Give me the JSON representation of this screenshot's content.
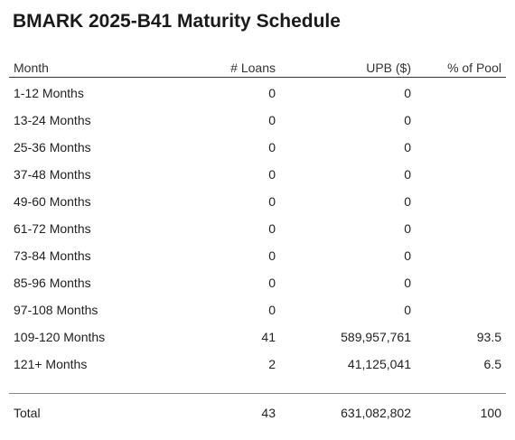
{
  "title": "BMARK 2025-B41 Maturity Schedule",
  "columns": {
    "month": "Month",
    "loans": "# Loans",
    "upb": "UPB ($)",
    "pool": "% of Pool"
  },
  "rows": [
    {
      "month": "1-12 Months",
      "loans": "0",
      "upb": "0",
      "pool": ""
    },
    {
      "month": "13-24 Months",
      "loans": "0",
      "upb": "0",
      "pool": ""
    },
    {
      "month": "25-36 Months",
      "loans": "0",
      "upb": "0",
      "pool": ""
    },
    {
      "month": "37-48 Months",
      "loans": "0",
      "upb": "0",
      "pool": ""
    },
    {
      "month": "49-60 Months",
      "loans": "0",
      "upb": "0",
      "pool": ""
    },
    {
      "month": "61-72 Months",
      "loans": "0",
      "upb": "0",
      "pool": ""
    },
    {
      "month": "73-84 Months",
      "loans": "0",
      "upb": "0",
      "pool": ""
    },
    {
      "month": "85-96 Months",
      "loans": "0",
      "upb": "0",
      "pool": ""
    },
    {
      "month": "97-108 Months",
      "loans": "0",
      "upb": "0",
      "pool": ""
    },
    {
      "month": "109-120 Months",
      "loans": "41",
      "upb": "589,957,761",
      "pool": "93.5"
    },
    {
      "month": "121+ Months",
      "loans": "2",
      "upb": "41,125,041",
      "pool": "6.5"
    }
  ],
  "total": {
    "month": "Total",
    "loans": "43",
    "upb": "631,082,802",
    "pool": "100"
  }
}
